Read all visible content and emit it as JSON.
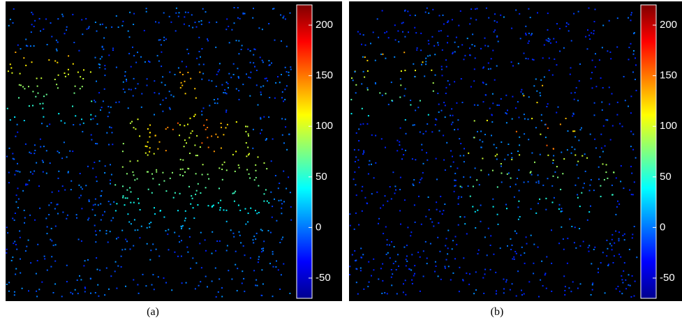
{
  "panels": [
    {
      "caption": "(a)",
      "colorbar": {
        "lim": [
          -70,
          220
        ],
        "ticks": [
          -50,
          0,
          50,
          100,
          150,
          200
        ]
      }
    },
    {
      "caption": "(b)",
      "colorbar": {
        "lim": [
          -70,
          220
        ],
        "ticks": [
          -50,
          0,
          50,
          100,
          150,
          200
        ]
      }
    }
  ]
}
